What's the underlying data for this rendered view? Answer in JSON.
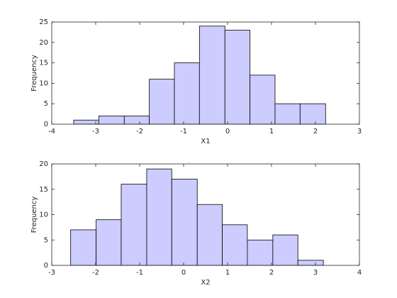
{
  "chart_data": [
    {
      "type": "histogram",
      "xlabel": "X1",
      "ylabel": "Frequency",
      "bins": [
        -3.5,
        -2.93,
        -2.35,
        -1.78,
        -1.21,
        -0.64,
        -0.06,
        0.51,
        1.08,
        1.65,
        2.23
      ],
      "values": [
        1,
        2,
        2,
        11,
        15,
        24,
        23,
        12,
        5,
        5
      ],
      "color": "#ccccff",
      "xlim": [
        -4,
        3
      ],
      "xticks": [
        -4,
        -3,
        -2,
        -1,
        0,
        1,
        2,
        3
      ],
      "ylim": [
        0,
        25
      ],
      "yticks": [
        0,
        5,
        10,
        15,
        20,
        25
      ]
    },
    {
      "type": "histogram",
      "xlabel": "X2",
      "ylabel": "Frequency",
      "bins": [
        -2.57,
        -1.99,
        -1.42,
        -0.84,
        -0.27,
        0.31,
        0.88,
        1.45,
        2.03,
        2.6,
        3.18
      ],
      "values": [
        7,
        9,
        16,
        19,
        17,
        12,
        8,
        5,
        6,
        1
      ],
      "color": "#ccccff",
      "xlim": [
        -3,
        4
      ],
      "xticks": [
        -3,
        -2,
        -1,
        0,
        1,
        2,
        3,
        4
      ],
      "ylim": [
        0,
        20
      ],
      "yticks": [
        0,
        5,
        10,
        15,
        20
      ]
    }
  ]
}
